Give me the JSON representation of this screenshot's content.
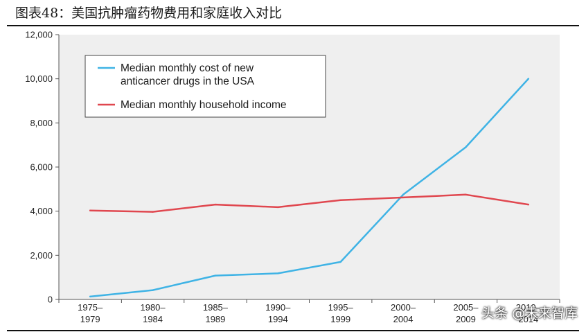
{
  "figure_title": "图表48：美国抗肿瘤药物费用和家庭收入对比",
  "watermark": "头条 @未来智库",
  "colors": {
    "cost_line": "#3fb3e5",
    "income_line": "#e0474f",
    "plot_bg": "#efefef",
    "axis": "#555555"
  },
  "chart_data": {
    "type": "line",
    "title": "",
    "xlabel": "",
    "ylabel": "",
    "ylim": [
      0,
      12000
    ],
    "yticks": [
      {
        "value": 0,
        "label": "0"
      },
      {
        "value": 2000,
        "label": "2,000"
      },
      {
        "value": 4000,
        "label": "4,000"
      },
      {
        "value": 6000,
        "label": "6,000"
      },
      {
        "value": 8000,
        "label": "8,000"
      },
      {
        "value": 10000,
        "label": "10,000"
      },
      {
        "value": 12000,
        "label": "12,000"
      }
    ],
    "categories": [
      {
        "line1": "1975–",
        "line2": "1979"
      },
      {
        "line1": "1980–",
        "line2": "1984"
      },
      {
        "line1": "1985–",
        "line2": "1989"
      },
      {
        "line1": "1990–",
        "line2": "1994"
      },
      {
        "line1": "1995–",
        "line2": "1999"
      },
      {
        "line1": "2000–",
        "line2": "2004"
      },
      {
        "line1": "2005–",
        "line2": "2009"
      },
      {
        "line1": "2010–",
        "line2": "2014"
      }
    ],
    "series": [
      {
        "name_lines": [
          "Median monthly cost of new",
          "anticancer drugs in the USA"
        ],
        "color_key": "cost_line",
        "values": [
          130,
          420,
          1080,
          1180,
          1700,
          4750,
          6900,
          10000
        ]
      },
      {
        "name_lines": [
          "Median monthly household income"
        ],
        "color_key": "income_line",
        "values": [
          4030,
          3970,
          4300,
          4180,
          4500,
          4620,
          4750,
          4300
        ]
      }
    ],
    "legend_position": "top-left"
  }
}
